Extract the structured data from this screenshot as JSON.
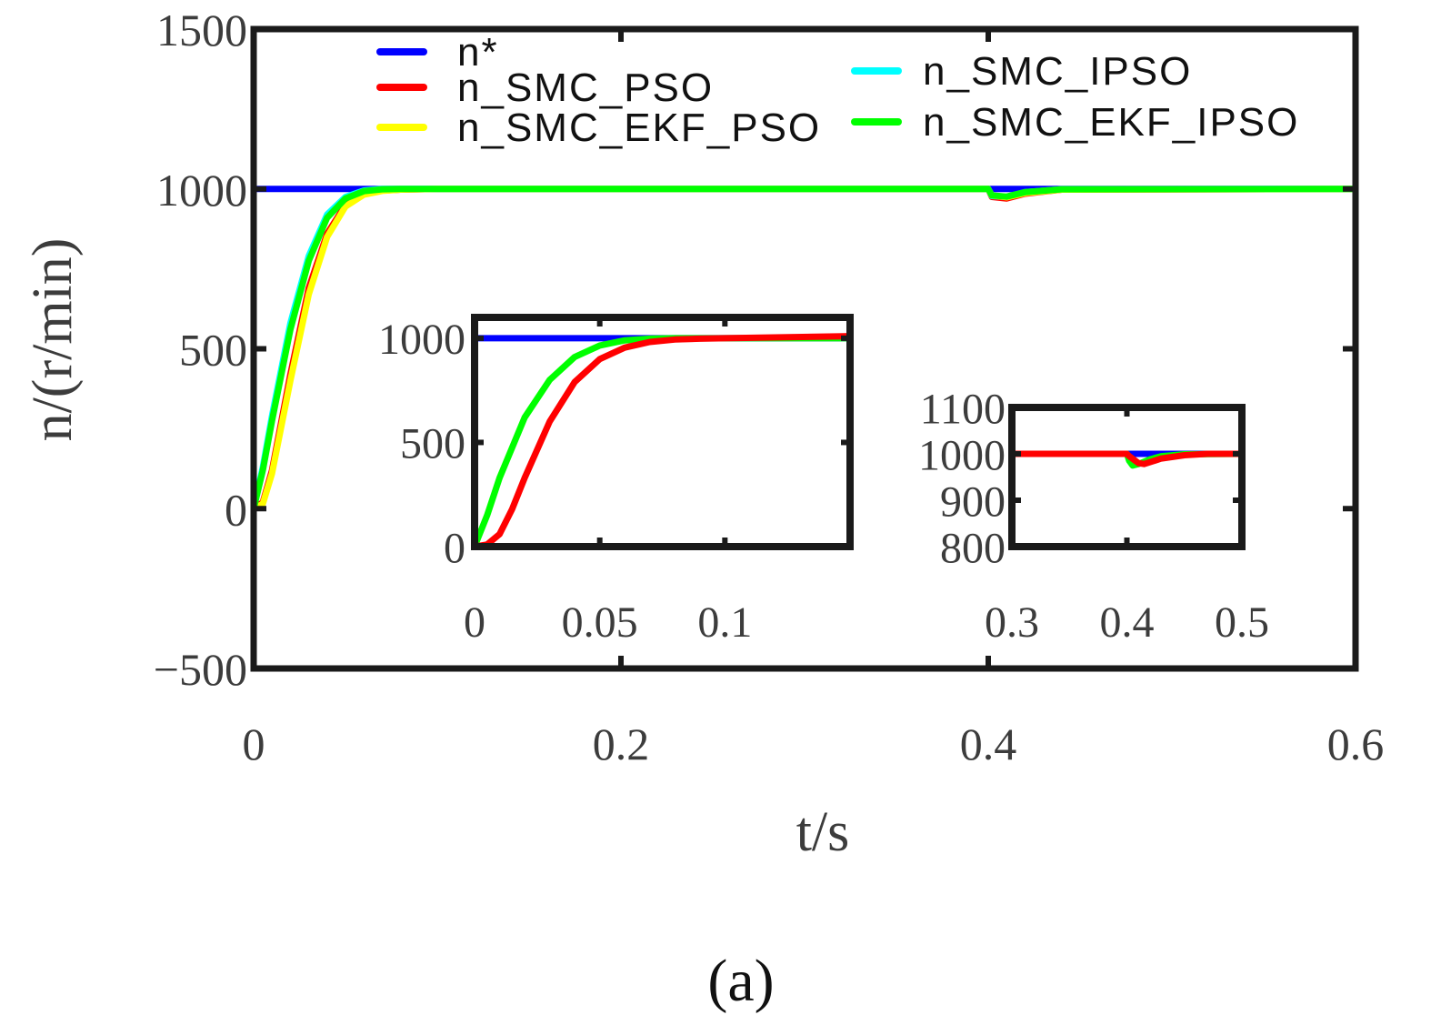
{
  "caption": "(a)",
  "chart_data": [
    {
      "type": "line",
      "xlabel": "t/s",
      "ylabel": "n/(r/min)",
      "xlim": [
        0,
        0.6
      ],
      "ylim": [
        -500,
        1500
      ],
      "xticks": [
        "0",
        "0.2",
        "0.4",
        "0.6"
      ],
      "yticks": [
        "-500",
        "0",
        "500",
        "1000",
        "1500"
      ],
      "grid": false,
      "legend_position": "top",
      "series": [
        {
          "name": "n*",
          "color": "#0000ff",
          "x": [
            0,
            0.6
          ],
          "y": [
            1000,
            1000
          ]
        },
        {
          "name": "n_SMC_PSO",
          "color": "#ff0000",
          "x": [
            0,
            0.005,
            0.01,
            0.02,
            0.03,
            0.04,
            0.05,
            0.06,
            0.07,
            0.08,
            0.1,
            0.12,
            0.2,
            0.4,
            0.402,
            0.41,
            0.42,
            0.44,
            0.6
          ],
          "y": [
            0,
            20,
            120,
            420,
            690,
            860,
            950,
            985,
            995,
            998,
            1000,
            1000,
            1000,
            1000,
            975,
            970,
            985,
            998,
            1000
          ]
        },
        {
          "name": "n_SMC_IPSO",
          "color": "#00ffff",
          "x": [
            0,
            0.005,
            0.01,
            0.02,
            0.03,
            0.04,
            0.05,
            0.06,
            0.07,
            0.08,
            0.1,
            0.2,
            0.4,
            0.402,
            0.41,
            0.42,
            0.44,
            0.6
          ],
          "y": [
            0,
            130,
            290,
            580,
            790,
            920,
            975,
            995,
            1000,
            1000,
            1000,
            1000,
            1000,
            978,
            975,
            990,
            999,
            1000
          ]
        },
        {
          "name": "n_SMC_EKF_PSO",
          "color": "#ffff00",
          "x": [
            0,
            0.005,
            0.01,
            0.02,
            0.03,
            0.04,
            0.05,
            0.06,
            0.07,
            0.08,
            0.1,
            0.12,
            0.2,
            0.4,
            0.402,
            0.41,
            0.42,
            0.44,
            0.6
          ],
          "y": [
            0,
            15,
            110,
            400,
            670,
            850,
            945,
            982,
            994,
            998,
            1000,
            1000,
            1000,
            1000,
            980,
            974,
            987,
            998,
            1000
          ]
        },
        {
          "name": "n_SMC_EKF_IPSO",
          "color": "#00ff00",
          "x": [
            0,
            0.005,
            0.01,
            0.02,
            0.03,
            0.04,
            0.05,
            0.06,
            0.07,
            0.08,
            0.1,
            0.2,
            0.4,
            0.402,
            0.41,
            0.42,
            0.44,
            0.6
          ],
          "y": [
            0,
            120,
            275,
            560,
            775,
            910,
            970,
            993,
            999,
            1000,
            1000,
            1000,
            1000,
            980,
            976,
            990,
            999,
            1000
          ]
        }
      ]
    },
    {
      "type": "line",
      "xlim": [
        0,
        0.15
      ],
      "ylim": [
        0,
        1100
      ],
      "xticks": [
        "0",
        "0.05",
        "0.1"
      ],
      "yticks": [
        "0",
        "500",
        "1000"
      ],
      "series": [
        {
          "name": "n*",
          "color": "#0000ff",
          "x": [
            0,
            0.15
          ],
          "y": [
            1000,
            1000
          ]
        },
        {
          "name": "n_SMC_EKF_IPSO",
          "color": "#00ff00",
          "x": [
            0,
            0.005,
            0.01,
            0.02,
            0.03,
            0.04,
            0.05,
            0.06,
            0.07,
            0.08,
            0.09,
            0.1,
            0.15
          ],
          "y": [
            0,
            150,
            330,
            620,
            800,
            910,
            965,
            990,
            998,
            1000,
            1000,
            1000,
            1000
          ]
        },
        {
          "name": "n_SMC_PSO",
          "color": "#ff0000",
          "x": [
            0,
            0.005,
            0.01,
            0.015,
            0.02,
            0.03,
            0.04,
            0.05,
            0.06,
            0.07,
            0.08,
            0.09,
            0.1,
            0.15
          ],
          "y": [
            0,
            10,
            60,
            180,
            330,
            600,
            790,
            900,
            955,
            982,
            994,
            998,
            1000,
            1010
          ]
        }
      ]
    },
    {
      "type": "line",
      "xlim": [
        0.3,
        0.5
      ],
      "ylim": [
        800,
        1100
      ],
      "xticks": [
        "0.3",
        "0.4",
        "0.5"
      ],
      "yticks": [
        "800",
        "900",
        "1000",
        "1100"
      ],
      "series": [
        {
          "name": "n*",
          "color": "#0000ff",
          "x": [
            0.3,
            0.5
          ],
          "y": [
            1000,
            1000
          ]
        },
        {
          "name": "n_SMC_EKF_IPSO",
          "color": "#00ff00",
          "x": [
            0.3,
            0.4,
            0.402,
            0.405,
            0.41,
            0.42,
            0.43,
            0.45,
            0.5
          ],
          "y": [
            1000,
            1000,
            985,
            975,
            978,
            988,
            995,
            999,
            1000
          ]
        },
        {
          "name": "n_SMC_PSO",
          "color": "#ff0000",
          "x": [
            0.3,
            0.4,
            0.402,
            0.41,
            0.415,
            0.42,
            0.43,
            0.45,
            0.47,
            0.5
          ],
          "y": [
            1000,
            1000,
            995,
            980,
            978,
            982,
            990,
            997,
            1000,
            1000
          ]
        }
      ]
    }
  ]
}
